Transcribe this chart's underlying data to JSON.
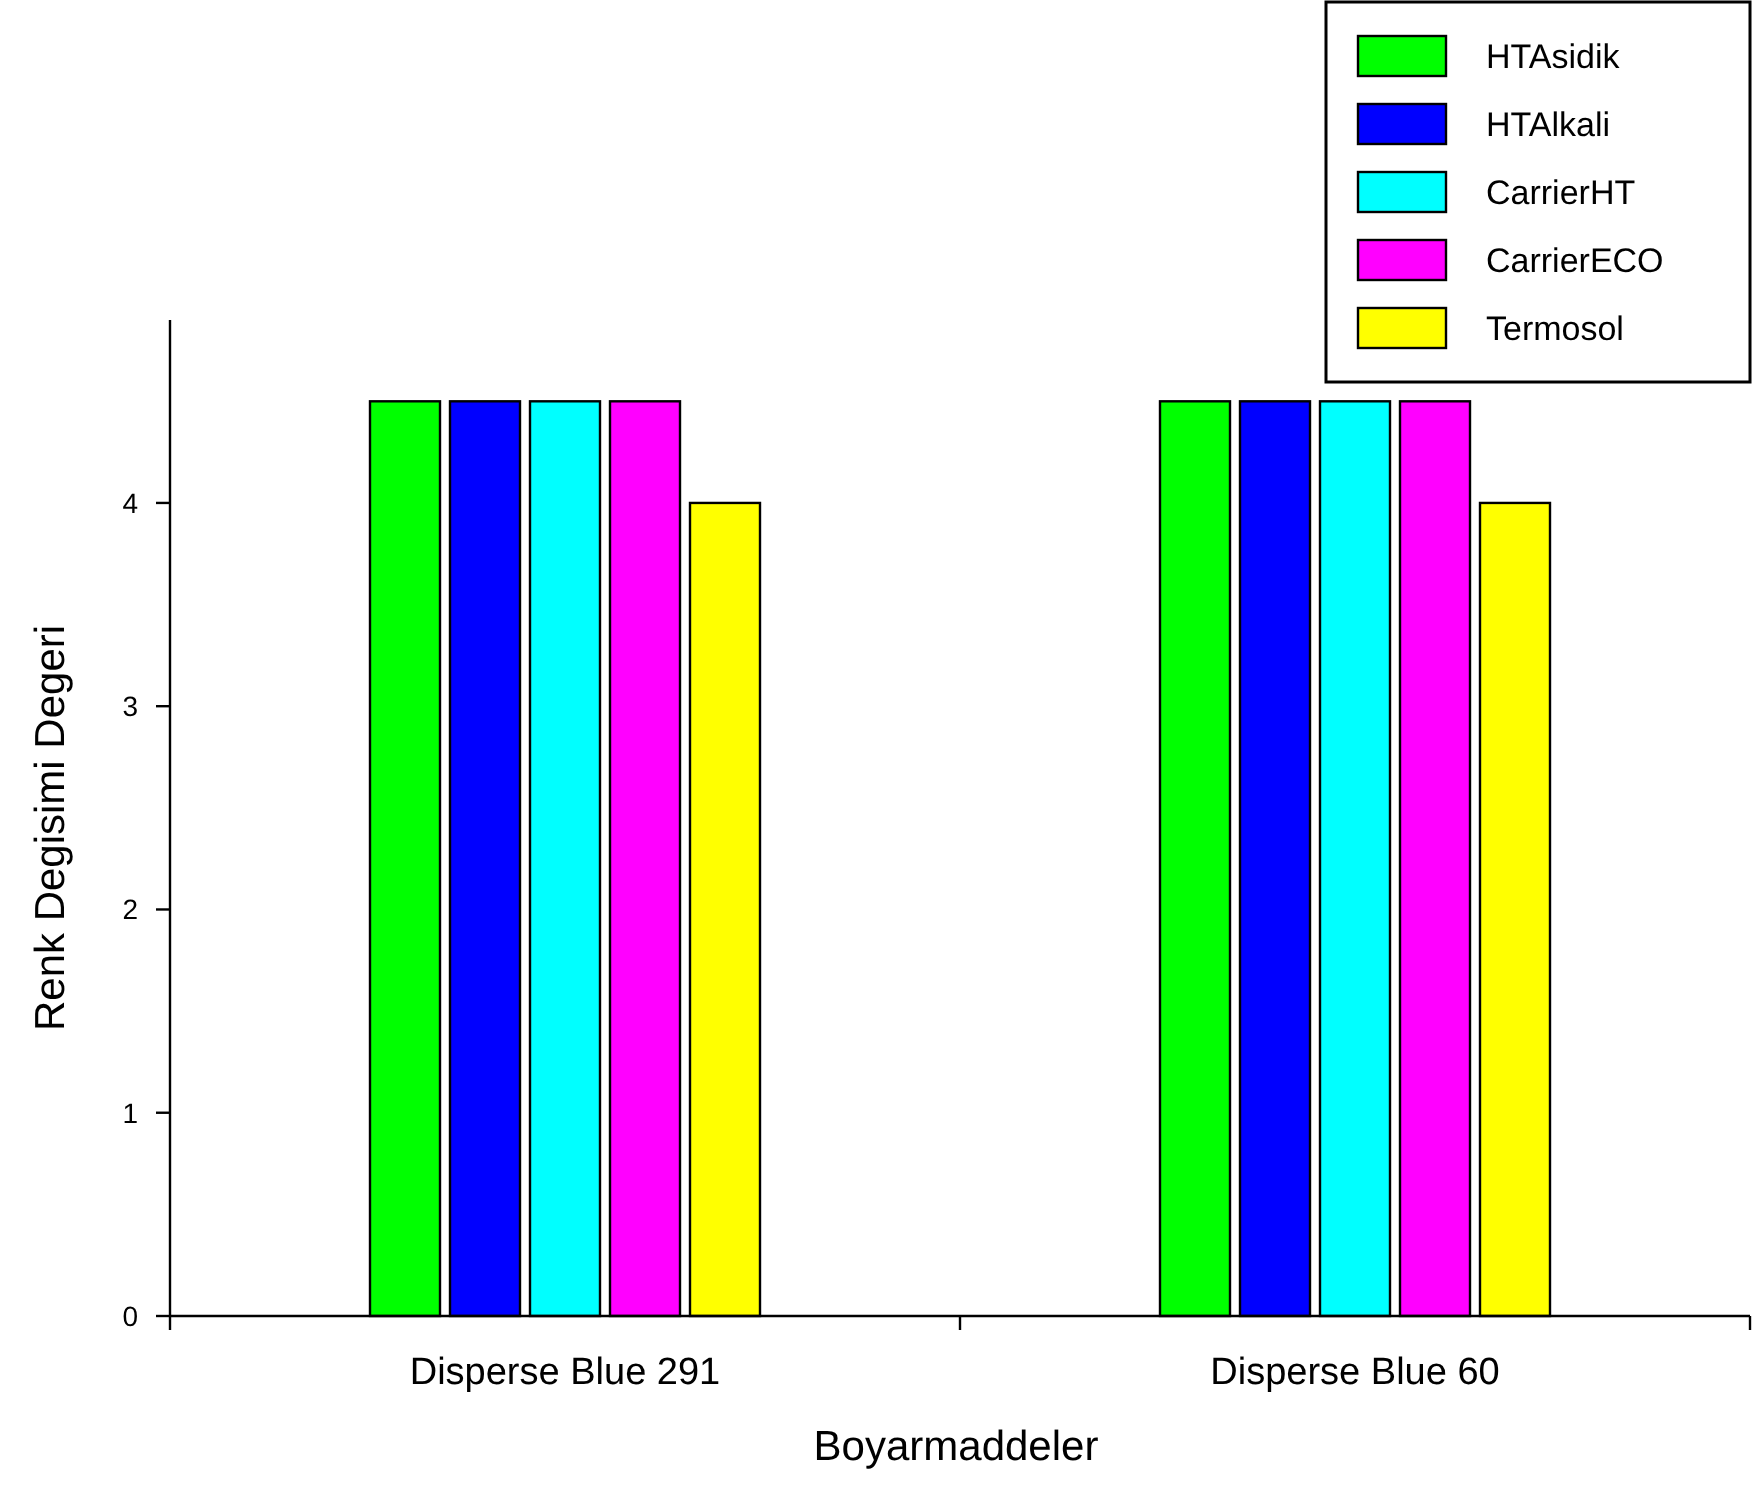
{
  "chart_data": {
    "type": "bar",
    "xlabel": "Boyarmaddeler",
    "ylabel": "Renk Degisimi Degeri",
    "categories": [
      "Disperse Blue 291",
      "Disperse Blue 60"
    ],
    "series": [
      {
        "name": "HTAsidik",
        "color": "#00ff00",
        "values": [
          4.5,
          4.5
        ]
      },
      {
        "name": "HTAlkali",
        "color": "#0000ff",
        "values": [
          4.5,
          4.5
        ]
      },
      {
        "name": "CarrierHT",
        "color": "#00ffff",
        "values": [
          4.5,
          4.5
        ]
      },
      {
        "name": "CarrierECO",
        "color": "#ff00ff",
        "values": [
          4.5,
          4.5
        ]
      },
      {
        "name": "Termosol",
        "color": "#ffff00",
        "values": [
          4,
          4
        ]
      }
    ],
    "ylim": [
      0,
      4.9
    ],
    "yticks": [
      0,
      1,
      2,
      3,
      4
    ],
    "grid": false,
    "legend": "top right"
  }
}
